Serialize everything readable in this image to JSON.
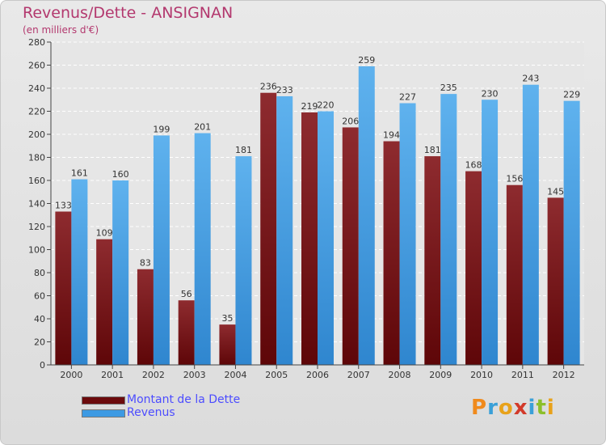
{
  "header": {
    "title": "Revenus/Dette - ANSIGNAN",
    "subtitle": "(en milliers d'€)"
  },
  "colors": {
    "dette": "#7a0f12",
    "revenus": "#4aa3e8",
    "title": "#b3386e",
    "legend_text": "#4c4cff"
  },
  "legend": {
    "items": [
      {
        "label": "Montant de la Dette",
        "color": "#6b0a0c"
      },
      {
        "label": "Revenus",
        "color": "#3d9ae3"
      }
    ]
  },
  "logo": {
    "letters": [
      {
        "ch": "P",
        "color": "#f08a1c"
      },
      {
        "ch": "r",
        "color": "#3aa0d8"
      },
      {
        "ch": "o",
        "color": "#e8a21a"
      },
      {
        "ch": "x",
        "color": "#d23a2a"
      },
      {
        "ch": "i",
        "color": "#3aa0d8"
      },
      {
        "ch": "t",
        "color": "#8cbf2a"
      },
      {
        "ch": "i",
        "color": "#e8a21a"
      }
    ]
  },
  "chart_data": {
    "type": "bar",
    "categories": [
      "2000",
      "2001",
      "2002",
      "2003",
      "2004",
      "2005",
      "2006",
      "2007",
      "2008",
      "2009",
      "2010",
      "2011",
      "2012"
    ],
    "series": [
      {
        "name": "Montant de la Dette",
        "values": [
          133,
          109,
          83,
          56,
          35,
          236,
          219,
          206,
          194,
          181,
          168,
          156,
          145
        ]
      },
      {
        "name": "Revenus",
        "values": [
          161,
          160,
          199,
          201,
          181,
          233,
          220,
          259,
          227,
          235,
          230,
          243,
          229
        ]
      }
    ],
    "title": "Revenus/Dette - ANSIGNAN",
    "ylabel": "(en milliers d'€)",
    "ylim": [
      0,
      280
    ],
    "yticks": [
      0,
      20,
      40,
      60,
      80,
      100,
      120,
      140,
      160,
      180,
      200,
      220,
      240,
      260,
      280
    ],
    "grid": true,
    "legend_position": "bottom-left"
  }
}
